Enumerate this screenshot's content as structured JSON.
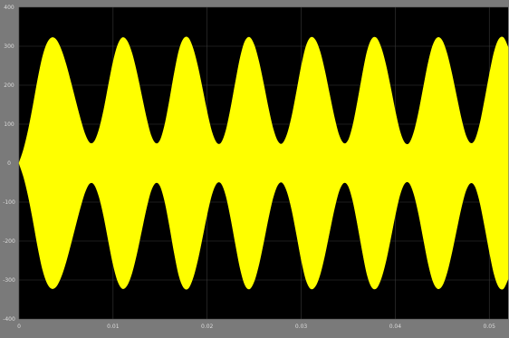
{
  "chart_data": {
    "type": "area",
    "title": "",
    "xlabel": "",
    "ylabel": "",
    "xlim": [
      0,
      0.052
    ],
    "ylim": [
      -400,
      400
    ],
    "x_ticks": [
      {
        "value": 0,
        "label": "0"
      },
      {
        "value": 0.01,
        "label": "0.01"
      },
      {
        "value": 0.02,
        "label": "0.02"
      },
      {
        "value": 0.03,
        "label": "0.03"
      },
      {
        "value": 0.04,
        "label": "0.04"
      },
      {
        "value": 0.05,
        "label": "0.05"
      }
    ],
    "y_ticks": [
      {
        "value": 400,
        "label": "400"
      },
      {
        "value": 300,
        "label": "300"
      },
      {
        "value": 200,
        "label": "200"
      },
      {
        "value": 100,
        "label": "100"
      },
      {
        "value": 0,
        "label": "0"
      },
      {
        "value": -100,
        "label": "-100"
      },
      {
        "value": -200,
        "label": "-200"
      },
      {
        "value": -300,
        "label": "-300"
      },
      {
        "value": -400,
        "label": "-400"
      }
    ],
    "grid": true,
    "series": [
      {
        "fill_color": "#ffff00",
        "envelope": {
          "x": [
            0,
            0.0005,
            0.001,
            0.0015,
            0.002,
            0.0025,
            0.003,
            0.0035,
            0.004,
            0.0045,
            0.005,
            0.0055,
            0.006,
            0.0065,
            0.007,
            0.0075,
            0.008,
            0.0085,
            0.009,
            0.0095,
            0.01,
            0.0105,
            0.011,
            0.0115,
            0.012,
            0.0125,
            0.013,
            0.0135,
            0.014,
            0.0145,
            0.015,
            0.0155,
            0.016,
            0.0165,
            0.017,
            0.0175,
            0.018,
            0.0185,
            0.019,
            0.0195,
            0.02,
            0.0205,
            0.021,
            0.0215,
            0.022,
            0.0225,
            0.023,
            0.0235,
            0.024,
            0.0245,
            0.025,
            0.0255,
            0.026,
            0.0265,
            0.027,
            0.0275,
            0.028,
            0.0285,
            0.029,
            0.0295,
            0.03,
            0.0305,
            0.031,
            0.0315,
            0.032,
            0.0325,
            0.033,
            0.0335,
            0.034,
            0.0345,
            0.035,
            0.0355,
            0.036,
            0.0365,
            0.037,
            0.0375,
            0.038,
            0.0385,
            0.039,
            0.0395,
            0.04,
            0.0405,
            0.041,
            0.0415,
            0.042,
            0.0425,
            0.043,
            0.0435,
            0.044,
            0.0445,
            0.045,
            0.0455,
            0.046,
            0.0465,
            0.047,
            0.0475,
            0.048,
            0.0485,
            0.049,
            0.0495,
            0.05,
            0.0505,
            0.051,
            0.0515,
            0.052
          ],
          "y": [
            0,
            36,
            86,
            148,
            215,
            272,
            308,
            322,
            315,
            290,
            253,
            208,
            161,
            115,
            75,
            52,
            55,
            85,
            135,
            198,
            259,
            303,
            322,
            313,
            282,
            234,
            177,
            120,
            73,
            51,
            58,
            98,
            160,
            229,
            288,
            319,
            321,
            294,
            248,
            190,
            130,
            80,
            52,
            52,
            83,
            139,
            205,
            268,
            311,
            323,
            303,
            260,
            203,
            142,
            89,
            56,
            50,
            73,
            119,
            181,
            246,
            298,
            322,
            316,
            286,
            237,
            178,
            120,
            73,
            51,
            58,
            97,
            158,
            225,
            285,
            318,
            321,
            296,
            252,
            194,
            133,
            81,
            52,
            51,
            80,
            131,
            194,
            256,
            302,
            322,
            314,
            281,
            231,
            173,
            116,
            71,
            51,
            60,
            100,
            160,
            225,
            283,
            317,
            322,
            297
          ]
        }
      }
    ]
  }
}
